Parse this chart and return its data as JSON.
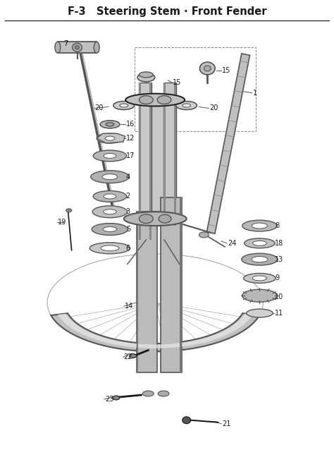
{
  "title": "F-3   Steering Stem · Front Fender",
  "title_fontsize": 10.5,
  "bg_color": "#ffffff",
  "fig_width": 4.74,
  "fig_height": 6.55,
  "dpi": 100,
  "text_color": "#1a1a1a",
  "dark": "#1a1a1a",
  "mid": "#555555",
  "light": "#aaaaaa",
  "vlight": "#dddddd",
  "header_line_color": "#333333"
}
